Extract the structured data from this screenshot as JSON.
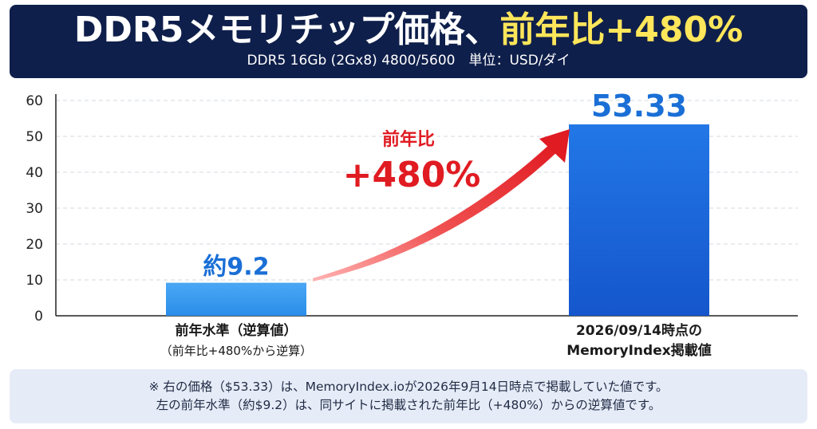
{
  "header": {
    "title_main": "DDR5メモリチップ価格、",
    "title_highlight": "前年比+480%",
    "subtitle": "DDR5 16Gb (2Gx8) 4800/5600　単位：USD/ダイ"
  },
  "annotation": {
    "line1": "前年比",
    "line2": "+480%"
  },
  "chart_data": {
    "type": "bar",
    "categories": [
      [
        "前年水準（逆算値）",
        "（前年比+480%から逆算）"
      ],
      [
        "2026/09/14時点の",
        "MemoryIndex掲載値"
      ]
    ],
    "values": [
      9.2,
      53.33
    ],
    "value_labels": [
      "約9.2",
      "53.33"
    ],
    "ylim": [
      0,
      60
    ],
    "yticks": [
      0,
      10,
      20,
      30,
      40,
      50,
      60
    ],
    "grid": true,
    "colors": {
      "bar_light": "#2f96ee",
      "bar_dark": "#1a63d8",
      "label": "#1a6fd6",
      "arrow": "#e8242a"
    }
  },
  "footer": {
    "line1": "※ 右の価格（$53.33）は、MemoryIndex.ioが2026年9月14日時点で掲載していた値です。",
    "line2": "左の前年水準（約$9.2）は、同サイトに掲載された前年比（+480%）からの逆算値です。"
  }
}
